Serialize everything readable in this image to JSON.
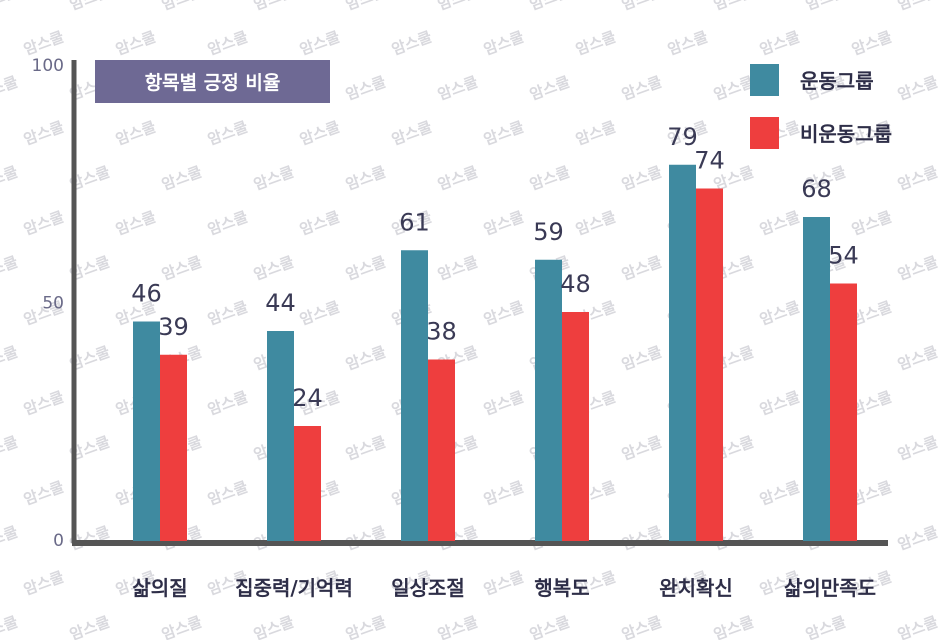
{
  "chart_data": {
    "type": "bar",
    "title": "항목별 긍정 비율",
    "categories": [
      "삶의질",
      "집중력/기억력",
      "일상조절",
      "행복도",
      "완치확신",
      "삶의만족도"
    ],
    "series": [
      {
        "name": "운동그룹",
        "color": "#3f8aa0",
        "values": [
          46,
          44,
          61,
          59,
          79,
          68
        ]
      },
      {
        "name": "비운동그룹",
        "color": "#ee3e3e",
        "values": [
          39,
          24,
          38,
          48,
          74,
          54
        ]
      }
    ],
    "ylim": [
      0,
      100
    ],
    "yticks": [
      "0",
      "50",
      "100"
    ],
    "legend_position": "top-right",
    "grid": false
  },
  "watermark": {
    "text": "암스쿨"
  }
}
